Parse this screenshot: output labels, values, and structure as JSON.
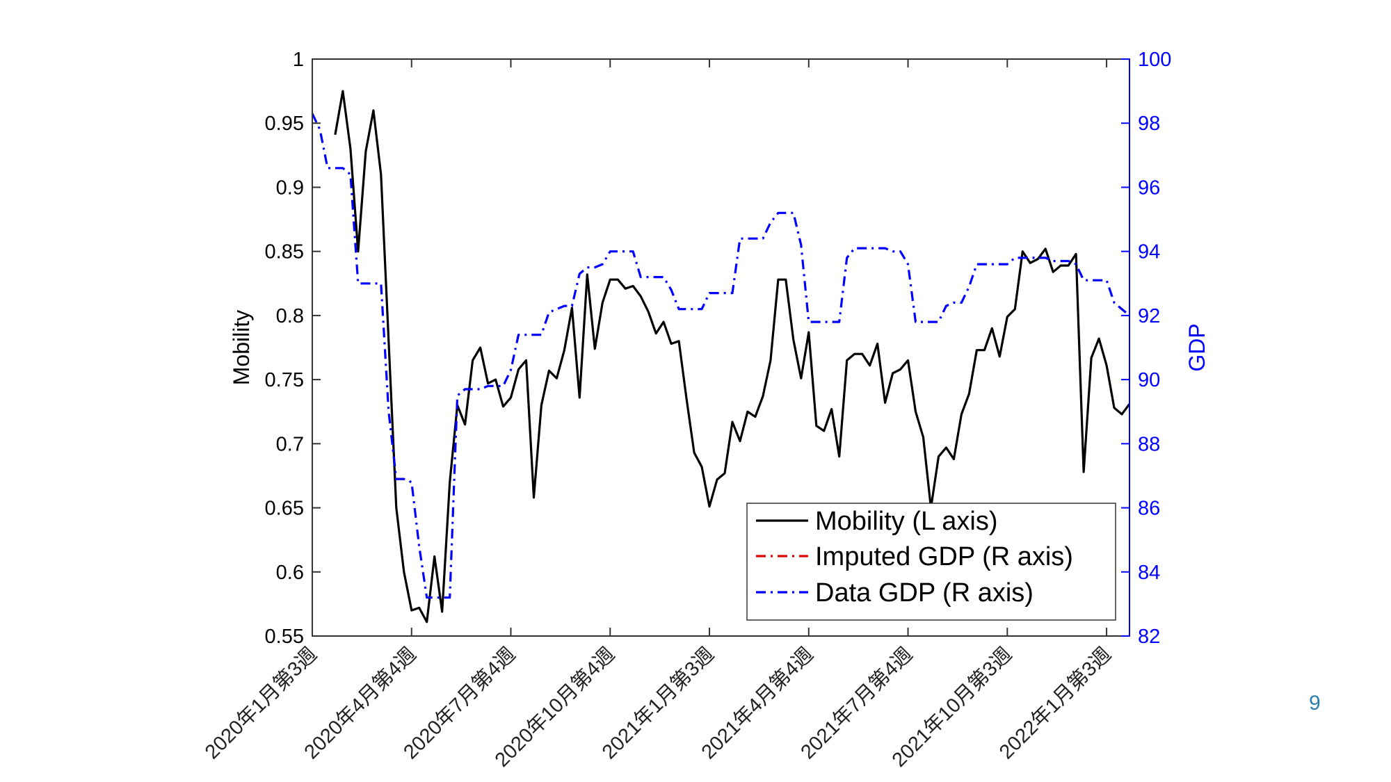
{
  "slide": {
    "page_number": "9"
  },
  "chart_data": {
    "type": "line",
    "ylabel": "Mobility",
    "ylabel_right": "GDP",
    "ylim": [
      0.55,
      1
    ],
    "ylim_right": [
      82,
      100
    ],
    "yticks": [
      "0.55",
      "0.6",
      "0.65",
      "0.7",
      "0.75",
      "0.8",
      "0.85",
      "0.9",
      "0.95",
      "1"
    ],
    "yticks_right": [
      "82",
      "84",
      "86",
      "88",
      "90",
      "92",
      "94",
      "96",
      "98",
      "100"
    ],
    "x_ticks": [
      {
        "label": "2020年1月第3週",
        "x": 2
      },
      {
        "label": "2020年4月第4週",
        "x": 15
      },
      {
        "label": "2020年7月第4週",
        "x": 28
      },
      {
        "label": "2020年10月第4週",
        "x": 41
      },
      {
        "label": "2021年1月第3週",
        "x": 54
      },
      {
        "label": "2021年4月第4週",
        "x": 67
      },
      {
        "label": "2021年7月第4週",
        "x": 80
      },
      {
        "label": "2021年10月第3週",
        "x": 93
      },
      {
        "label": "2022年1月第3週",
        "x": 106
      }
    ],
    "xlim": [
      2,
      109
    ],
    "legend_position": "bottom-right",
    "grid": false,
    "colors": {
      "mobility": "#000000",
      "imputed": "#dd0000",
      "data_gdp": "#0000ff",
      "right_axis": "#0000ff"
    },
    "series": [
      {
        "name": "Mobility (L axis)",
        "axis": "left",
        "style": "solid",
        "x": [
          5,
          6,
          7,
          8,
          9,
          10,
          11,
          12,
          13,
          14,
          15,
          16,
          17,
          18,
          19,
          20,
          21,
          22,
          23,
          24,
          25,
          26,
          27,
          28,
          29,
          30,
          31,
          32,
          33,
          34,
          35,
          36,
          37,
          38,
          39,
          40,
          41,
          42,
          43,
          44,
          45,
          46,
          47,
          48,
          49,
          50,
          51,
          52,
          53,
          54,
          55,
          56,
          57,
          58,
          59,
          60,
          61,
          62,
          63,
          64,
          65,
          66,
          67,
          68,
          69,
          70,
          71,
          72,
          73,
          74,
          75,
          76,
          77,
          78,
          79,
          80,
          81,
          82,
          83,
          84,
          85,
          86,
          87,
          88,
          89,
          90,
          91,
          92,
          93,
          94,
          95,
          96,
          97,
          98,
          99,
          100,
          101,
          102,
          103,
          104,
          105,
          106,
          107,
          108,
          109
        ],
        "values": [
          0.941,
          0.975,
          0.93,
          0.85,
          0.928,
          0.96,
          0.91,
          0.78,
          0.65,
          0.6,
          0.57,
          0.572,
          0.561,
          0.612,
          0.569,
          0.67,
          0.73,
          0.715,
          0.765,
          0.775,
          0.747,
          0.75,
          0.729,
          0.736,
          0.758,
          0.765,
          0.658,
          0.73,
          0.757,
          0.751,
          0.773,
          0.806,
          0.736,
          0.832,
          0.774,
          0.81,
          0.828,
          0.828,
          0.821,
          0.823,
          0.815,
          0.803,
          0.786,
          0.795,
          0.778,
          0.78,
          0.735,
          0.693,
          0.682,
          0.651,
          0.672,
          0.677,
          0.717,
          0.702,
          0.725,
          0.721,
          0.737,
          0.765,
          0.828,
          0.828,
          0.781,
          0.751,
          0.787,
          0.714,
          0.71,
          0.727,
          0.69,
          0.765,
          0.77,
          0.77,
          0.761,
          0.778,
          0.732,
          0.755,
          0.758,
          0.765,
          0.725,
          0.705,
          0.65,
          0.69,
          0.697,
          0.688,
          0.723,
          0.739,
          0.773,
          0.773,
          0.79,
          0.768,
          0.799,
          0.805,
          0.85,
          0.841,
          0.844,
          0.852,
          0.834,
          0.839,
          0.839,
          0.848,
          0.678,
          0.767,
          0.782,
          0.761,
          0.728,
          0.723,
          0.731
        ]
      },
      {
        "name": "Imputed GDP (R axis)",
        "axis": "right",
        "style": "dashdot",
        "x": [],
        "values": []
      },
      {
        "name": "Data GDP (R axis)",
        "axis": "right",
        "style": "dashdot",
        "x": [
          2,
          3,
          4,
          5,
          6,
          7,
          8,
          9,
          10,
          11,
          12,
          13,
          14,
          15,
          16,
          17,
          18,
          19,
          20,
          21,
          22,
          23,
          24,
          25,
          26,
          27,
          28,
          29,
          30,
          31,
          32,
          33,
          34,
          35,
          36,
          37,
          38,
          39,
          40,
          41,
          42,
          43,
          44,
          45,
          46,
          47,
          48,
          49,
          50,
          51,
          52,
          53,
          54,
          55,
          56,
          57,
          58,
          59,
          60,
          61,
          62,
          63,
          64,
          65,
          66,
          67,
          68,
          69,
          70,
          71,
          72,
          73,
          74,
          75,
          76,
          77,
          78,
          79,
          80,
          81,
          82,
          83,
          84,
          85,
          86,
          87,
          88,
          89,
          90,
          91,
          92,
          93,
          94,
          95,
          96,
          97,
          98,
          99,
          100,
          101,
          102,
          103,
          104,
          105,
          106,
          107,
          108,
          109
        ],
        "values": [
          98.3,
          97.8,
          96.6,
          96.6,
          96.6,
          96.4,
          93.0,
          93.0,
          93.0,
          93.0,
          89.0,
          86.9,
          86.9,
          86.8,
          84.8,
          83.2,
          83.2,
          83.2,
          83.2,
          89.5,
          89.7,
          89.7,
          89.7,
          89.8,
          89.8,
          89.8,
          90.3,
          91.4,
          91.4,
          91.4,
          91.4,
          92.1,
          92.2,
          92.3,
          92.3,
          93.3,
          93.5,
          93.5,
          93.6,
          94.0,
          94.0,
          94.0,
          94.0,
          93.2,
          93.2,
          93.2,
          93.2,
          92.8,
          92.2,
          92.2,
          92.2,
          92.2,
          92.7,
          92.7,
          92.7,
          92.7,
          94.4,
          94.4,
          94.4,
          94.4,
          94.9,
          95.2,
          95.2,
          95.2,
          94.2,
          91.8,
          91.8,
          91.8,
          91.8,
          91.8,
          93.8,
          94.1,
          94.1,
          94.1,
          94.1,
          94.1,
          94.0,
          94.0,
          93.6,
          91.8,
          91.8,
          91.8,
          91.8,
          92.3,
          92.4,
          92.4,
          92.9,
          93.6,
          93.6,
          93.6,
          93.6,
          93.6,
          93.8,
          93.8,
          93.8,
          93.8,
          93.8,
          93.7,
          93.7,
          93.7,
          93.6,
          93.1,
          93.1,
          93.1,
          93.1,
          92.4,
          92.2,
          92.0
        ]
      }
    ]
  }
}
